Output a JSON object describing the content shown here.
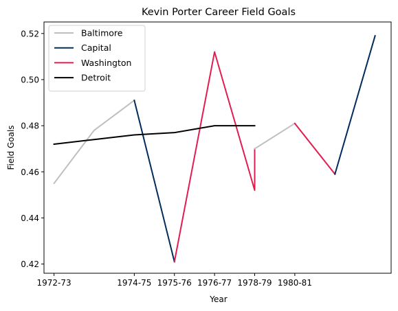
{
  "chart_data": {
    "type": "line",
    "title": "Kevin Porter  Career Field Goals",
    "xlabel": "Year",
    "ylabel": "Field Goals",
    "x_tick_labels": [
      "1972-73",
      "1974-75",
      "1975-76",
      "1976-77",
      "1978-79",
      "1980-81"
    ],
    "x_tick_positions": [
      0,
      2,
      3,
      4,
      5,
      6
    ],
    "y_ticks": [
      0.42,
      0.44,
      0.46,
      0.48,
      0.5,
      0.52
    ],
    "xlim": [
      -0.25,
      8.4
    ],
    "ylim": [
      0.416,
      0.525
    ],
    "grid": false,
    "legend_position": "top-left",
    "series": [
      {
        "name": "Baltimore",
        "color": "#bfbfbf",
        "points": [
          [
            0,
            0.455
          ],
          [
            1,
            0.478
          ],
          [
            2,
            0.491
          ]
        ]
      },
      {
        "name": "Capital",
        "color": "#002b5c",
        "points": [
          [
            2,
            0.491
          ],
          [
            3,
            0.421
          ]
        ]
      },
      {
        "name": "Washington",
        "color": "#e31b4f",
        "points": [
          [
            3,
            0.421
          ],
          [
            4,
            0.512
          ],
          [
            5,
            0.452
          ],
          [
            5,
            0.47
          ]
        ]
      },
      {
        "name": "Baltimore",
        "color": "#bfbfbf",
        "legend": false,
        "points": [
          [
            5,
            0.47
          ],
          [
            6,
            0.481
          ]
        ]
      },
      {
        "name": "Washington",
        "color": "#e31b4f",
        "legend": false,
        "points": [
          [
            6,
            0.481
          ],
          [
            7,
            0.459
          ]
        ]
      },
      {
        "name": "Capital",
        "color": "#002b5c",
        "legend": false,
        "points": [
          [
            7,
            0.459
          ],
          [
            8,
            0.519
          ]
        ]
      },
      {
        "name": "Detroit",
        "color": "#000000",
        "points": [
          [
            0,
            0.472
          ],
          [
            1,
            0.474
          ],
          [
            2,
            0.476
          ],
          [
            3,
            0.477
          ],
          [
            4,
            0.48
          ],
          [
            5,
            0.48
          ]
        ]
      }
    ]
  }
}
